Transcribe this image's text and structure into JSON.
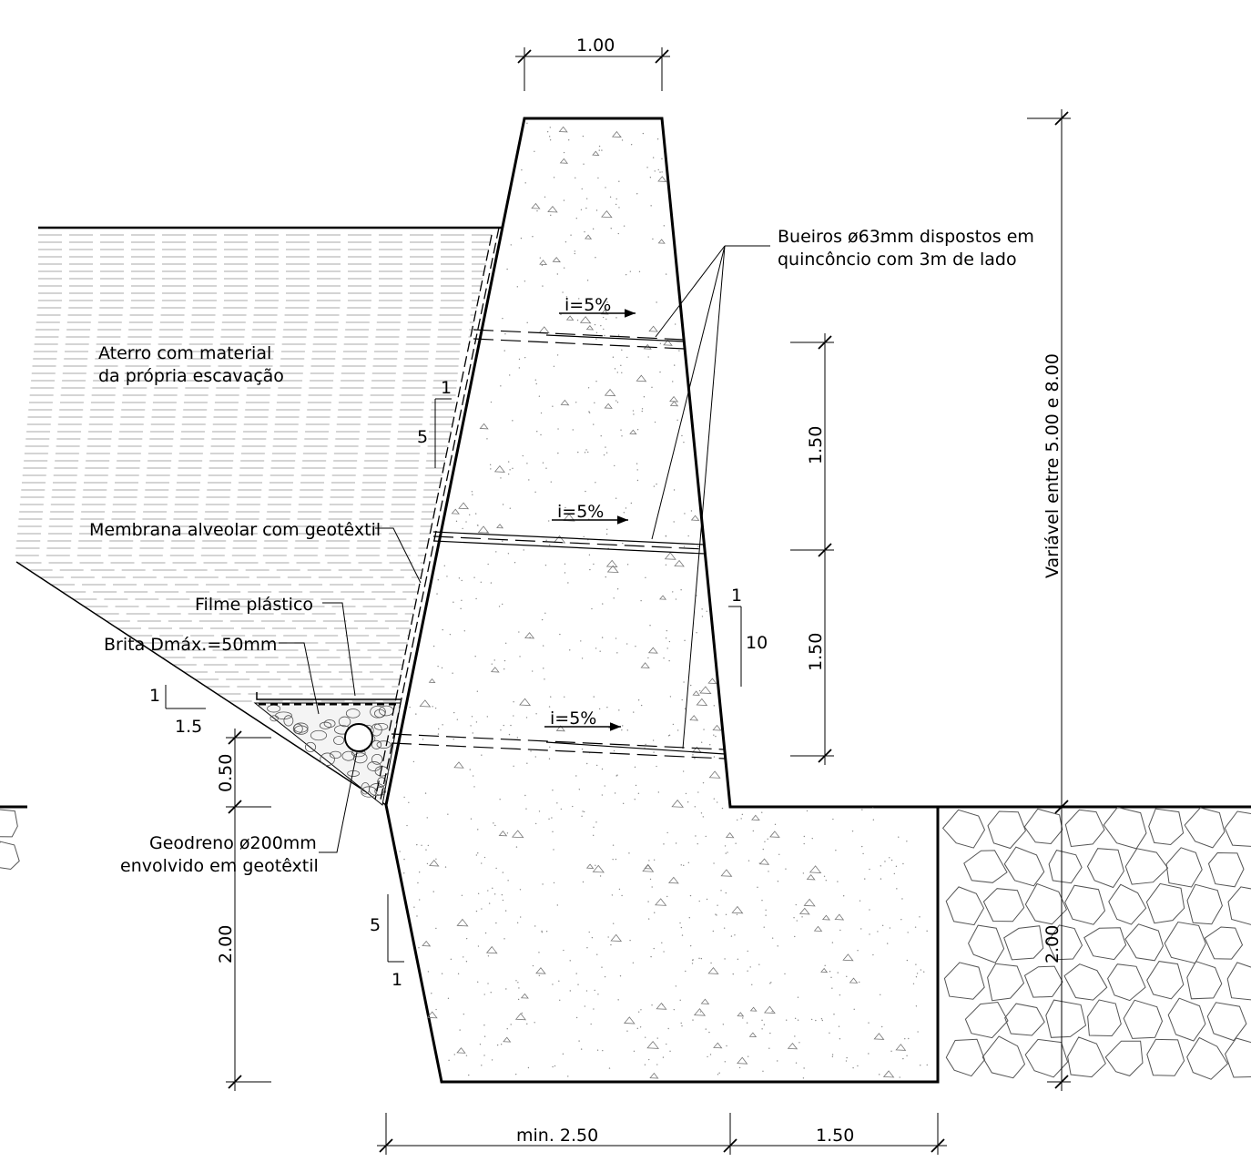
{
  "dimensions": {
    "top_width": "1.00",
    "total_height": "Variável entre 5.00 e 8.00",
    "drain_spacing_upper": "1.50",
    "drain_spacing_lower": "1.50",
    "drain_height": "0.50",
    "foundation_depth_left": "2.00",
    "foundation_depth_right": "2.00",
    "base_width": "min. 2.50",
    "toe_width": "1.50"
  },
  "slopes": {
    "back_v": "1",
    "back_h": "5",
    "front_v": "1",
    "front_h": "10",
    "excavation_v": "1",
    "excavation_h": "1.5",
    "foundation_v": "5",
    "foundation_h": "1"
  },
  "labels": {
    "weep_holes_line1": "Bueiros ø63mm dispostos em",
    "weep_holes_line2": "quincôncio com 3m de lado",
    "fill_line1": "Aterro com material",
    "fill_line2": "da própria escavação",
    "membrane": "Membrana alveolar com geotêxtil",
    "plastic_film": "Filme plástico",
    "gravel": "Brita Dmáx.=50mm",
    "geodrain_line1": "Geodreno ø200mm",
    "geodrain_line2": "envolvido em geotêxtil",
    "slope_1": "i=5%",
    "slope_2": "i=5%",
    "slope_3": "i=5%"
  }
}
